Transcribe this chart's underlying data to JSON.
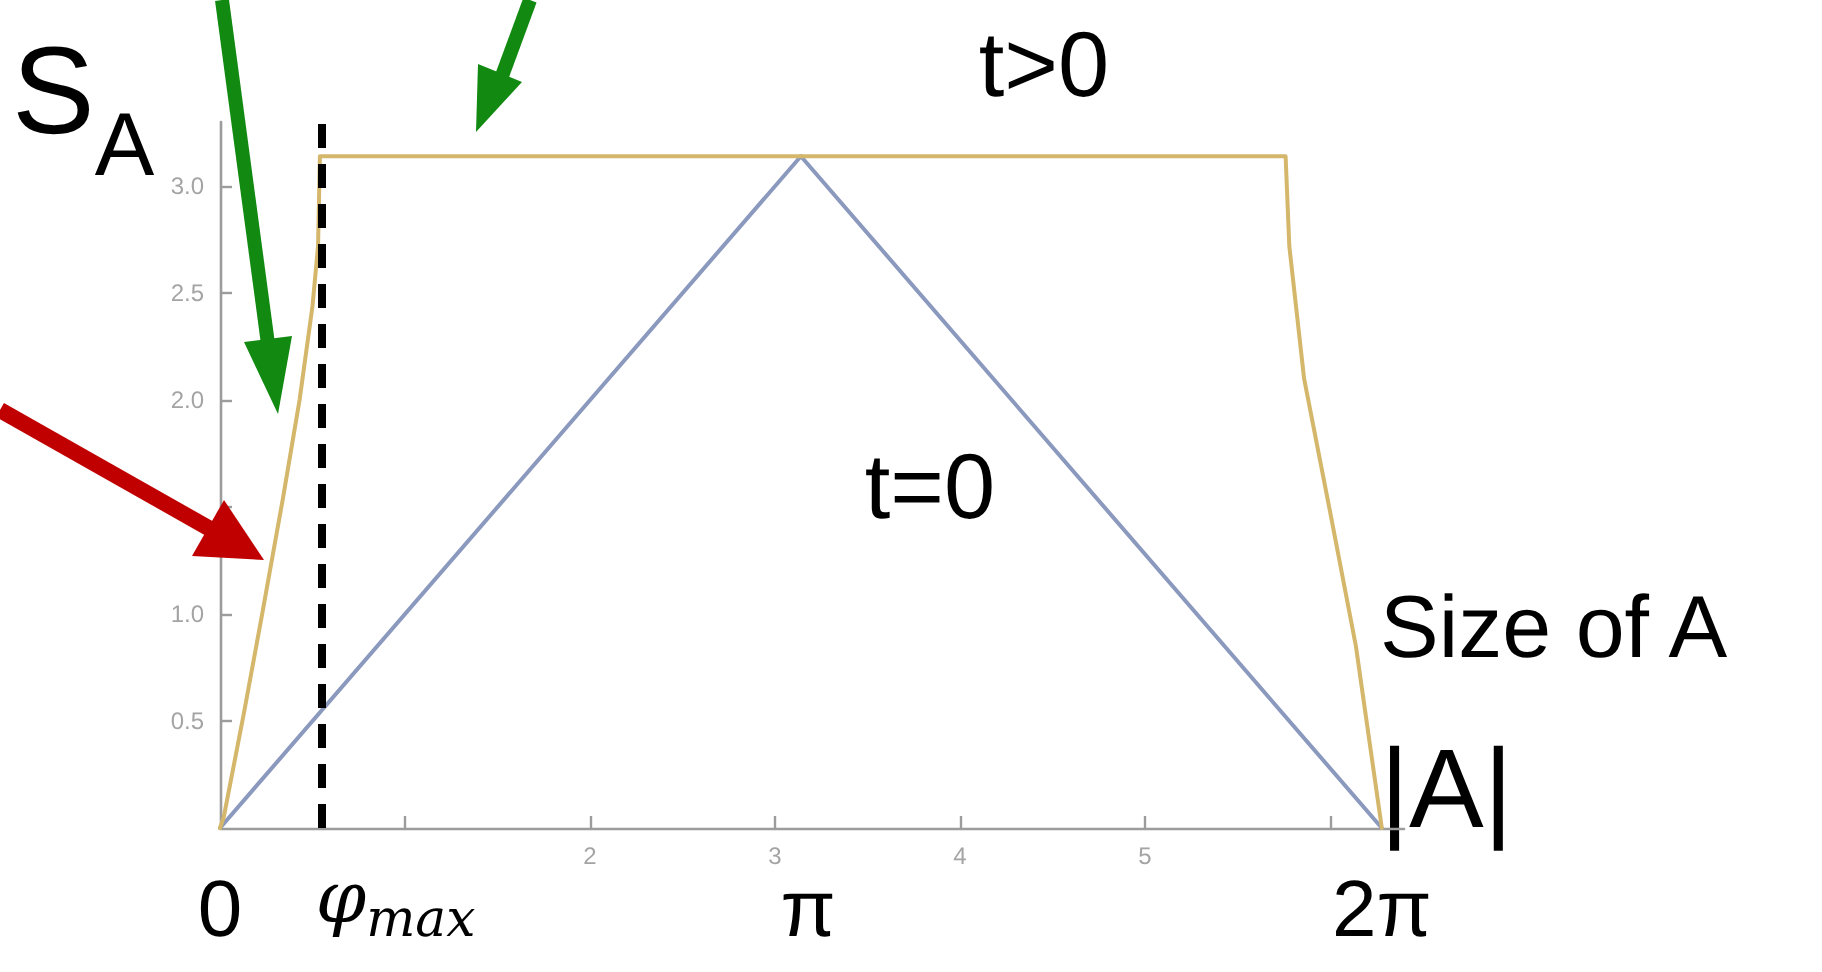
{
  "chart_data": {
    "type": "line",
    "ylabel": "S$_{A}$",
    "xlabel": "Size of A\n|A|",
    "xlim": [
      0,
      6.4
    ],
    "xticks": [
      {
        "value": 1,
        "label": null
      },
      2,
      3,
      4,
      5,
      {
        "value": 6,
        "label": null
      }
    ],
    "ylim": [
      0,
      3.3
    ],
    "yticks": [
      0.5,
      {
        "value": 1,
        "label": "1.0"
      },
      {
        "value": 1.5,
        "label": null
      },
      {
        "value": 2,
        "label": "2.0"
      },
      2.5,
      {
        "value": 3,
        "label": "3.0"
      }
    ],
    "series": [
      {
        "name": "t=0",
        "color": "#8a99bd",
        "x": [
          0,
          3.14,
          6.28
        ],
        "values": [
          0,
          3.14,
          0
        ]
      },
      {
        "name": "t>0",
        "color": "#d4b76b",
        "x": [
          0,
          0.02,
          0.13,
          0.23,
          0.34,
          0.43,
          0.5,
          0.53,
          0.54,
          5.76,
          5.78,
          5.86,
          6.0,
          6.14,
          6.28
        ],
        "values": [
          0,
          0.05,
          0.54,
          1.01,
          1.54,
          2.0,
          2.44,
          2.72,
          3.14,
          3.14,
          2.72,
          2.1,
          1.48,
          0.85,
          0
        ]
      }
    ],
    "ref_lines": [
      {
        "axis": "x",
        "value": 0.55,
        "label": "φ$_{max}$",
        "color": "#000000",
        "line_style": "dashed"
      }
    ],
    "annotations": [
      {
        "text": "0",
        "x": 0,
        "y": 0
      },
      "π",
      {
        "text": "2π",
        "x": 6.28,
        "y": 0
      }
    ]
  }
}
